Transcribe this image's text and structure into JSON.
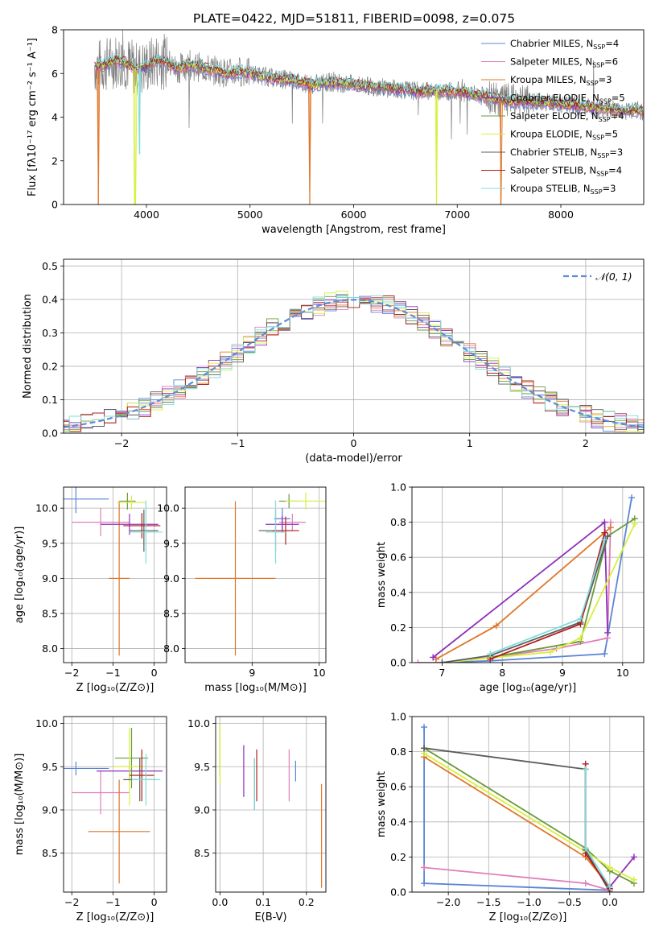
{
  "figure_title": "PLATE=0422, MJD=51811, FIBERID=0098, z=0.075",
  "colors": {
    "chabrier_miles": "#5b84d6",
    "salpeter_miles": "#e07fb8",
    "kroupa_miles": "#e0762a",
    "chabrier_elodie": "#8d2fb8",
    "salpeter_elodie": "#6c9a3a",
    "kroupa_elodie": "#d7ef3c",
    "chabrier_stelib": "#5c5c5c",
    "salpeter_stelib": "#b01e1e",
    "kroupa_stelib": "#7fdcdc",
    "data": "#808080",
    "gaussian": "#5b8dd8",
    "grid": "#b0b0b0"
  },
  "chart_data": [
    {
      "id": "spectrum",
      "type": "line",
      "title": "PLATE=0422, MJD=51811, FIBERID=0098, z=0.075",
      "xlabel": "wavelength [Angstrom, rest frame]",
      "ylabel": "Flux [fλ10⁻¹⁷ erg cm⁻² s⁻¹ A⁻¹]",
      "xlim": [
        3200,
        8800
      ],
      "ylim": [
        0,
        8
      ],
      "xticks": [
        4000,
        5000,
        6000,
        7000,
        8000
      ],
      "yticks": [
        0,
        2,
        4,
        6,
        8
      ],
      "grid": false,
      "legend_position": "top-right",
      "legend": [
        {
          "label": "Chabrier MILES, N",
          "sub": "SSP",
          "suffix": "=4",
          "color_key": "chabrier_miles"
        },
        {
          "label": "Salpeter MILES, N",
          "sub": "SSP",
          "suffix": "=6",
          "color_key": "salpeter_miles"
        },
        {
          "label": "Kroupa MILES, N",
          "sub": "SSP",
          "suffix": "=3",
          "color_key": "kroupa_miles"
        },
        {
          "label": "Chabrier ELODIE, N",
          "sub": "SSP",
          "suffix": "=5",
          "color_key": "chabrier_elodie"
        },
        {
          "label": "Salpeter ELODIE, N",
          "sub": "SSP",
          "suffix": "=4",
          "color_key": "salpeter_elodie"
        },
        {
          "label": "Kroupa ELODIE, N",
          "sub": "SSP",
          "suffix": "=5",
          "color_key": "kroupa_elodie"
        },
        {
          "label": "Chabrier STELIB, N",
          "sub": "SSP",
          "suffix": "=3",
          "color_key": "chabrier_stelib"
        },
        {
          "label": "Salpeter STELIB, N",
          "sub": "SSP",
          "suffix": "=4",
          "color_key": "salpeter_stelib"
        },
        {
          "label": "Kroupa STELIB, N",
          "sub": "SSP",
          "suffix": "=3",
          "color_key": "kroupa_stelib"
        }
      ],
      "continuum": {
        "x": [
          3500,
          3600,
          3700,
          3800,
          3900,
          4000,
          4100,
          4200,
          4300,
          4400,
          4500,
          4600,
          4700,
          4800,
          4900,
          5000,
          5200,
          5400,
          5600,
          5800,
          6000,
          6200,
          6400,
          6600,
          6800,
          7000,
          7200,
          7400,
          7600,
          7800,
          8000,
          8200,
          8400,
          8600,
          8800
        ],
        "y": [
          6.3,
          6.4,
          6.6,
          6.5,
          6.2,
          6.3,
          6.6,
          6.5,
          6.2,
          6.4,
          6.3,
          6.2,
          6.1,
          6.0,
          6.1,
          6.0,
          5.8,
          5.7,
          5.5,
          5.6,
          5.5,
          5.4,
          5.3,
          5.2,
          5.2,
          5.2,
          5.0,
          4.8,
          4.7,
          4.7,
          4.6,
          4.5,
          4.4,
          4.3,
          4.3
        ]
      },
      "model_dips": [
        {
          "x": 3535,
          "y": 0.0,
          "color_key": "kroupa_miles"
        },
        {
          "x": 3890,
          "y": 0.0,
          "color_key": "kroupa_elodie"
        },
        {
          "x": 3935,
          "y": 2.3,
          "color_key": "kroupa_stelib"
        },
        {
          "x": 5577,
          "y": 0.0,
          "color_key": "kroupa_miles"
        },
        {
          "x": 6800,
          "y": 0.0,
          "color_key": "kroupa_elodie"
        },
        {
          "x": 7420,
          "y": 0.0,
          "color_key": "kroupa_miles"
        }
      ]
    },
    {
      "id": "residuals",
      "type": "line",
      "xlabel": "(data-model)/error",
      "ylabel": "Normed distribution",
      "xlim": [
        -2.5,
        2.5
      ],
      "ylim": [
        0,
        0.52
      ],
      "xticks": [
        -2,
        -1,
        0,
        1,
        2
      ],
      "yticks": [
        0.0,
        0.1,
        0.2,
        0.3,
        0.4,
        0.5
      ],
      "grid": true,
      "legend_position": "top-right",
      "legend": [
        {
          "label": "𝒩(0, 1)",
          "color_key": "gaussian",
          "style": "dashed"
        }
      ],
      "bin_width": 0.1,
      "gaussian": {
        "mu": 0,
        "sigma": 1
      }
    },
    {
      "id": "z_age",
      "type": "scatter",
      "xlabel": "Z [log₁₀(Z/Z⊙)]",
      "ylabel": "age  [log₁₀(age/yr)]",
      "xlim": [
        -2.2,
        0.3
      ],
      "ylim": [
        7.8,
        10.3
      ],
      "xticks": [
        -2,
        -1,
        0
      ],
      "yticks": [
        8.0,
        8.5,
        9.0,
        9.5,
        10.0
      ],
      "grid": true,
      "points": [
        {
          "x": -1.9,
          "xerr": 0.8,
          "y": 10.13,
          "yerr": 0.2,
          "color_key": "chabrier_miles"
        },
        {
          "x": -1.3,
          "xerr": 0.7,
          "y": 9.8,
          "yerr": 0.2,
          "color_key": "salpeter_miles"
        },
        {
          "x": -0.85,
          "xerr": 0.25,
          "y": 9.0,
          "yerr": 1.1,
          "color_key": "kroupa_miles"
        },
        {
          "x": -0.6,
          "xerr": 0.7,
          "y": 9.77,
          "yerr": 0.15,
          "color_key": "chabrier_elodie"
        },
        {
          "x": -0.65,
          "xerr": 0.2,
          "y": 10.1,
          "yerr": 0.12,
          "color_key": "salpeter_elodie"
        },
        {
          "x": -0.55,
          "xerr": 0.35,
          "y": 10.08,
          "yerr": 0.1,
          "color_key": "kroupa_elodie"
        },
        {
          "x": -0.25,
          "xerr": 0.35,
          "y": 9.68,
          "yerr": 0.3,
          "color_key": "chabrier_stelib"
        },
        {
          "x": -0.3,
          "xerr": 0.45,
          "y": 9.75,
          "yerr": 0.18,
          "color_key": "salpeter_stelib"
        },
        {
          "x": -0.2,
          "xerr": 0.4,
          "y": 9.66,
          "yerr": 0.45,
          "color_key": "kroupa_stelib"
        }
      ]
    },
    {
      "id": "mass_age",
      "type": "scatter",
      "xlabel": "mass [log₁₀(M/M⊙)]",
      "ylabel": "",
      "xlim": [
        8.0,
        10.1
      ],
      "ylim": [
        7.8,
        10.3
      ],
      "xticks": [
        9,
        10
      ],
      "yticks": [
        8.0,
        8.5,
        9.0,
        9.5,
        10.0
      ],
      "grid": true,
      "points": [
        {
          "x": 9.45,
          "xerr": 0.12,
          "y": 9.85,
          "yerr": 0.15,
          "color_key": "chabrier_miles"
        },
        {
          "x": 9.6,
          "xerr": 0.2,
          "y": 9.8,
          "yerr": 0.12,
          "color_key": "salpeter_miles"
        },
        {
          "x": 8.75,
          "xerr": 0.6,
          "y": 9.0,
          "yerr": 1.1,
          "color_key": "kroupa_miles"
        },
        {
          "x": 9.45,
          "xerr": 0.25,
          "y": 9.77,
          "yerr": 0.12,
          "color_key": "chabrier_elodie"
        },
        {
          "x": 9.55,
          "xerr": 0.15,
          "y": 10.1,
          "yerr": 0.1,
          "color_key": "salpeter_elodie"
        },
        {
          "x": 9.8,
          "xerr": 0.3,
          "y": 10.1,
          "yerr": 0.12,
          "color_key": "kroupa_elodie"
        },
        {
          "x": 9.35,
          "xerr": 0.25,
          "y": 9.68,
          "yerr": 0.3,
          "color_key": "chabrier_stelib"
        },
        {
          "x": 9.5,
          "xerr": 0.2,
          "y": 9.68,
          "yerr": 0.2,
          "color_key": "salpeter_stelib"
        },
        {
          "x": 9.35,
          "xerr": 0.15,
          "y": 9.66,
          "yerr": 0.45,
          "color_key": "kroupa_stelib"
        }
      ]
    },
    {
      "id": "age_weight",
      "type": "line",
      "xlabel": "age  [log₁₀(age/yr)]",
      "ylabel": "mass weight",
      "xlim": [
        6.5,
        10.35
      ],
      "ylim": [
        0,
        1.0
      ],
      "xticks": [
        7,
        8,
        9,
        10
      ],
      "yticks": [
        0.0,
        0.2,
        0.4,
        0.6,
        0.8,
        1.0
      ],
      "grid": true,
      "series": [
        {
          "color_key": "chabrier_miles",
          "x": [
            6.9,
            7.8,
            9.7,
            10.15
          ],
          "y": [
            0.0,
            0.01,
            0.05,
            0.94
          ]
        },
        {
          "color_key": "salpeter_miles",
          "x": [
            6.6,
            7.0,
            7.8,
            8.9,
            9.75,
            9.8
          ],
          "y": [
            0.0,
            0.0,
            0.03,
            0.08,
            0.14,
            0.8
          ]
        },
        {
          "color_key": "kroupa_miles",
          "x": [
            6.9,
            7.9,
            9.8
          ],
          "y": [
            0.02,
            0.21,
            0.77
          ]
        },
        {
          "color_key": "chabrier_elodie",
          "x": [
            6.85,
            9.7,
            9.75
          ],
          "y": [
            0.03,
            0.8,
            0.17
          ]
        },
        {
          "color_key": "salpeter_elodie",
          "x": [
            7.8,
            9.3,
            9.75,
            10.2
          ],
          "y": [
            0.03,
            0.12,
            0.72,
            0.82
          ]
        },
        {
          "color_key": "kroupa_elodie",
          "x": [
            7.0,
            8.8,
            9.3,
            10.2
          ],
          "y": [
            0.0,
            0.06,
            0.14,
            0.79
          ]
        },
        {
          "color_key": "chabrier_stelib",
          "x": [
            7.0,
            7.8,
            9.3,
            9.75
          ],
          "y": [
            0.0,
            0.04,
            0.23,
            0.72
          ]
        },
        {
          "color_key": "salpeter_stelib",
          "x": [
            7.8,
            9.3,
            9.7
          ],
          "y": [
            0.02,
            0.22,
            0.74
          ]
        },
        {
          "color_key": "kroupa_stelib",
          "x": [
            7.8,
            9.3,
            9.7
          ],
          "y": [
            0.05,
            0.25,
            0.7
          ]
        }
      ]
    },
    {
      "id": "z_mass",
      "type": "scatter",
      "xlabel": "Z [log₁₀(Z/Z⊙)]",
      "ylabel": "mass [log₁₀(M/M⊙)]",
      "xlim": [
        -2.2,
        0.3
      ],
      "ylim": [
        8.05,
        10.08
      ],
      "xticks": [
        -2,
        -1,
        0
      ],
      "yticks": [
        8.5,
        9.0,
        9.5,
        10.0
      ],
      "grid": true,
      "points": [
        {
          "x": -1.9,
          "xerr": 0.8,
          "y": 9.48,
          "yerr": 0.08,
          "color_key": "chabrier_miles"
        },
        {
          "x": -1.3,
          "xerr": 0.7,
          "y": 9.2,
          "yerr": 0.25,
          "color_key": "salpeter_miles"
        },
        {
          "x": -0.85,
          "xerr": 0.75,
          "y": 8.75,
          "yerr": 0.6,
          "color_key": "kroupa_miles"
        },
        {
          "x": -0.6,
          "xerr": 0.8,
          "y": 9.45,
          "yerr": 0.12,
          "color_key": "chabrier_elodie"
        },
        {
          "x": -0.55,
          "xerr": 0.4,
          "y": 9.6,
          "yerr": 0.35,
          "color_key": "salpeter_elodie"
        },
        {
          "x": -0.6,
          "xerr": 0.4,
          "y": 9.5,
          "yerr": 0.45,
          "color_key": "kroupa_elodie"
        },
        {
          "x": -0.35,
          "xerr": 0.4,
          "y": 9.35,
          "yerr": 0.25,
          "color_key": "chabrier_stelib"
        },
        {
          "x": -0.3,
          "xerr": 0.3,
          "y": 9.4,
          "yerr": 0.3,
          "color_key": "salpeter_stelib"
        },
        {
          "x": -0.2,
          "xerr": 0.35,
          "y": 9.35,
          "yerr": 0.3,
          "color_key": "kroupa_stelib"
        }
      ]
    },
    {
      "id": "ebv_mass",
      "type": "scatter",
      "xlabel": "E(B-V)",
      "ylabel": "",
      "xlim": [
        -0.01,
        0.245
      ],
      "ylim": [
        8.05,
        10.08
      ],
      "xticks": [
        0.0,
        0.1,
        0.2
      ],
      "yticks": [
        8.5,
        9.0,
        9.5,
        10.0
      ],
      "grid": true,
      "points": [
        {
          "x": 0.175,
          "xerr": 0,
          "y": 9.45,
          "yerr": 0.12,
          "color_key": "chabrier_miles"
        },
        {
          "x": 0.16,
          "xerr": 0,
          "y": 9.4,
          "yerr": 0.3,
          "color_key": "salpeter_miles"
        },
        {
          "x": 0.235,
          "xerr": 0,
          "y": 8.7,
          "yerr": 0.6,
          "color_key": "kroupa_miles"
        },
        {
          "x": 0.055,
          "xerr": 0,
          "y": 9.45,
          "yerr": 0.3,
          "color_key": "chabrier_elodie"
        },
        {
          "x": 0.0,
          "xerr": 0,
          "y": 9.7,
          "yerr": 0.3,
          "color_key": "salpeter_elodie"
        },
        {
          "x": 0.0,
          "xerr": 0,
          "y": 9.65,
          "yerr": 0.35,
          "color_key": "kroupa_elodie"
        },
        {
          "x": 0.08,
          "xerr": 0,
          "y": 9.3,
          "yerr": 0.3,
          "color_key": "chabrier_stelib"
        },
        {
          "x": 0.085,
          "xerr": 0,
          "y": 9.4,
          "yerr": 0.3,
          "color_key": "salpeter_stelib"
        },
        {
          "x": 0.08,
          "xerr": 0,
          "y": 9.3,
          "yerr": 0.3,
          "color_key": "kroupa_stelib"
        }
      ]
    },
    {
      "id": "z_weight",
      "type": "line",
      "xlabel": "Z [log₁₀(Z/Z⊙)]",
      "ylabel": "mass weight",
      "xlim": [
        -2.45,
        0.42
      ],
      "ylim": [
        0,
        1.0
      ],
      "xticks": [
        -2.0,
        -1.5,
        -1.0,
        -0.5,
        0.0
      ],
      "yticks": [
        0.0,
        0.2,
        0.4,
        0.6,
        0.8,
        1.0
      ],
      "grid": true,
      "series": [
        {
          "color_key": "chabrier_miles",
          "x": [
            -2.3,
            -2.3,
            0.0
          ],
          "y": [
            0.94,
            0.05,
            0.01
          ]
        },
        {
          "color_key": "salpeter_miles",
          "x": [
            -2.3,
            -0.3,
            0.0
          ],
          "y": [
            0.14,
            0.05,
            0.01
          ]
        },
        {
          "color_key": "kroupa_miles",
          "x": [
            -2.3,
            -0.3,
            0.0
          ],
          "y": [
            0.77,
            0.2,
            0.03
          ]
        },
        {
          "color_key": "chabrier_elodie",
          "x": [
            0.0,
            0.3
          ],
          "y": [
            0.03,
            0.2
          ]
        },
        {
          "color_key": "salpeter_elodie",
          "x": [
            -2.3,
            -0.3,
            0.0,
            0.3
          ],
          "y": [
            0.82,
            0.25,
            0.12,
            0.05
          ]
        },
        {
          "color_key": "kroupa_elodie",
          "x": [
            -2.3,
            -0.3,
            0.0,
            0.3
          ],
          "y": [
            0.79,
            0.23,
            0.14,
            0.07
          ]
        },
        {
          "color_key": "chabrier_stelib",
          "x": [
            -2.3,
            -0.3,
            -0.3,
            0.0
          ],
          "y": [
            0.82,
            0.7,
            0.24,
            0.0
          ]
        },
        {
          "color_key": "salpeter_stelib",
          "x": [
            -0.3,
            -0.3,
            0.0
          ],
          "y": [
            0.73,
            0.22,
            0.02
          ]
        },
        {
          "color_key": "kroupa_stelib",
          "x": [
            -0.3,
            -0.3,
            0.0
          ],
          "y": [
            0.7,
            0.25,
            0.03
          ]
        }
      ]
    }
  ]
}
